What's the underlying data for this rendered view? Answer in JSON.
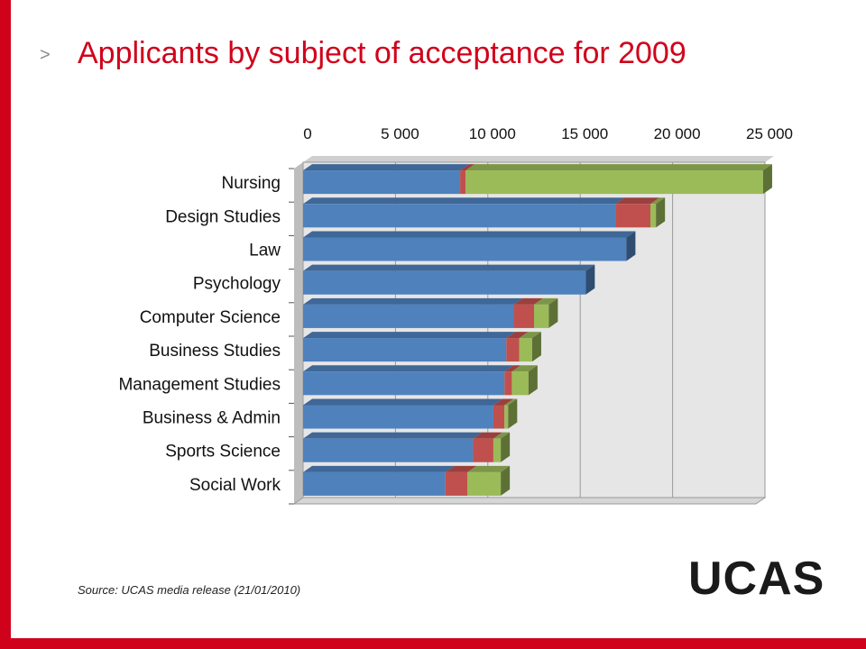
{
  "slide": {
    "chevron": ">",
    "title": "Applicants by subject of acceptance for 2009",
    "source": "Source: UCAS media release (21/01/2010)",
    "logo_text": "UCAS",
    "accent_color": "#d0021b"
  },
  "chart_data": {
    "type": "bar",
    "orientation": "horizontal",
    "stacked": true,
    "title": "",
    "xlabel": "",
    "ylabel": "",
    "xlim": [
      0,
      25000
    ],
    "xticks": [
      0,
      5000,
      10000,
      15000,
      20000,
      25000
    ],
    "xtick_labels": [
      "0",
      "5 000",
      "10 000",
      "15 000",
      "20 000",
      "25 000"
    ],
    "x_axis_position": "top",
    "grid": true,
    "legend": "none",
    "categories": [
      "Nursing",
      "Design Studies",
      "Law",
      "Psychology",
      "Computer Science",
      "Business Studies",
      "Management Studies",
      "Business & Admin",
      "Sports Science",
      "Social Work"
    ],
    "series": [
      {
        "color": "#4f81bd",
        "values": [
          8500,
          16900,
          17500,
          15300,
          11400,
          11000,
          10900,
          10300,
          9200,
          7700
        ]
      },
      {
        "color": "#c0504d",
        "values": [
          300,
          1900,
          0,
          0,
          1100,
          700,
          400,
          600,
          1100,
          1200
        ]
      },
      {
        "color": "#9bbb59",
        "values": [
          16100,
          300,
          0,
          0,
          800,
          700,
          900,
          200,
          400,
          1800
        ]
      }
    ]
  }
}
